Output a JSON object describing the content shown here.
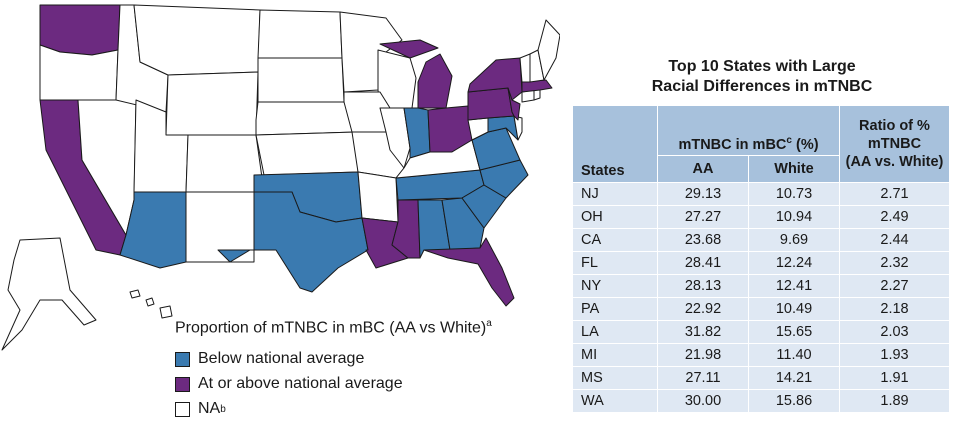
{
  "colors": {
    "below": "#3a7ab0",
    "above": "#6c2a80",
    "na": "#ffffff",
    "table_header": "#a7c1dc",
    "table_row": "#dfe8f3"
  },
  "legend": {
    "title": "Proportion of mTNBC in mBC (AA vs White)",
    "title_sup": "a",
    "items": [
      {
        "category": "below",
        "label": "Below national average",
        "sup": ""
      },
      {
        "category": "above",
        "label": "At or above national average",
        "sup": ""
      },
      {
        "category": "na",
        "label": "NA",
        "sup": "b"
      }
    ]
  },
  "map": {
    "above": [
      "WA",
      "CA",
      "MI",
      "OH",
      "NY",
      "PA",
      "NJ",
      "MA",
      "LA",
      "MS",
      "FL"
    ],
    "below": [
      "AZ",
      "TX",
      "OK",
      "IN",
      "MD",
      "VA",
      "NC",
      "SC",
      "TN",
      "AL",
      "GA"
    ]
  },
  "table": {
    "title_line1": "Top 10 States with Large",
    "title_line2": "Racial Differences in mTNBC",
    "group_header": "mTNBC in mBC",
    "group_header_sup": "c",
    "group_header_unit": "(%)",
    "col_state": "States",
    "col_aa": "AA",
    "col_white": "White",
    "col_ratio_l1": "Ratio of %",
    "col_ratio_l2": "mTNBC",
    "col_ratio_l3": "(AA vs. White)",
    "rows": [
      {
        "state": "NJ",
        "aa": "29.13",
        "white": "10.73",
        "ratio": "2.71"
      },
      {
        "state": "OH",
        "aa": "27.27",
        "white": "10.94",
        "ratio": "2.49"
      },
      {
        "state": "CA",
        "aa": "23.68",
        "white": "9.69",
        "ratio": "2.44"
      },
      {
        "state": "FL",
        "aa": "28.41",
        "white": "12.24",
        "ratio": "2.32"
      },
      {
        "state": "NY",
        "aa": "28.13",
        "white": "12.41",
        "ratio": "2.27"
      },
      {
        "state": "PA",
        "aa": "22.92",
        "white": "10.49",
        "ratio": "2.18"
      },
      {
        "state": "LA",
        "aa": "31.82",
        "white": "15.65",
        "ratio": "2.03"
      },
      {
        "state": "MI",
        "aa": "21.98",
        "white": "11.40",
        "ratio": "1.93"
      },
      {
        "state": "MS",
        "aa": "27.11",
        "white": "14.21",
        "ratio": "1.91"
      },
      {
        "state": "WA",
        "aa": "30.00",
        "white": "15.86",
        "ratio": "1.89"
      }
    ]
  }
}
